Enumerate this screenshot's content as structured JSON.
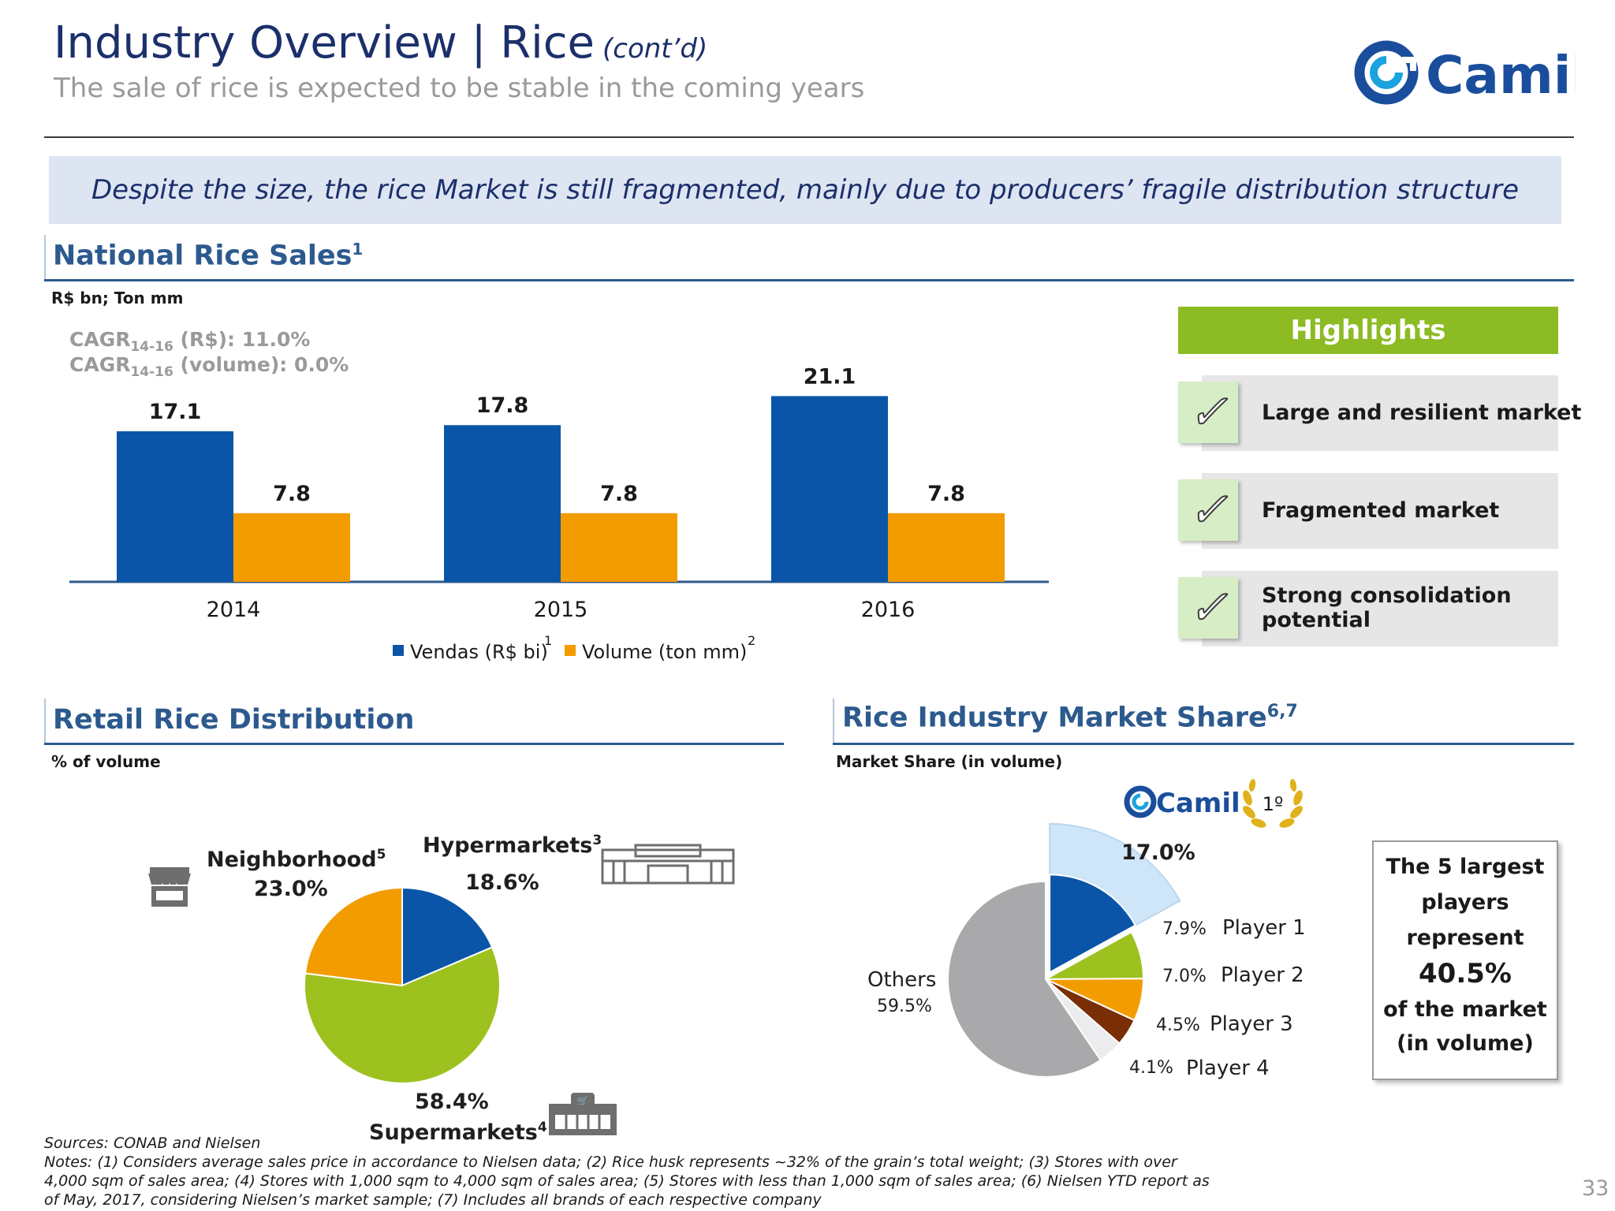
{
  "header": {
    "title": "Industry Overview | Rice",
    "title_suffix": "(cont’d)",
    "subtitle": "The sale of rice is expected to be stable in the coming years",
    "logo_text": "Camil"
  },
  "banner": "Despite the size, the rice Market is still fragmented, mainly due to producers’ fragile distribution structure",
  "sales_section": {
    "title": "National Rice Sales",
    "title_sup": "1",
    "unit": "R$ bn; Ton mm",
    "cagr_label": "CAGR",
    "cagr_sub": "14-16",
    "cagr_rs": " (R$): 11.0%",
    "cagr_volume": " (volume): 0.0%",
    "legend_1_sup": "1",
    "legend_2_sup": "2"
  },
  "highlights": {
    "title": "Highlights",
    "items": [
      "Large and resilient market",
      "Fragmented market",
      "Strong consolidation",
      "potential"
    ]
  },
  "distribution_section": {
    "title": "Retail Rice Distribution",
    "unit": "% of volume",
    "labels": {
      "hyper_name": "Hypermarkets",
      "hyper_sup": "3",
      "hyper_value": "18.6%",
      "neigh_name": "Neighborhood",
      "neigh_sup": "5",
      "neigh_value": "23.0%",
      "super_value": "58.4%",
      "super_name": "Supermarkets",
      "super_sup": "4"
    }
  },
  "share_section": {
    "title": "Rice Industry Market Share",
    "title_sup": "6,7",
    "unit": "Market Share (in volume)",
    "rank_badge": "1º",
    "labels": {
      "camil_value": "17.0%",
      "p1_value": "7.9%",
      "p1_name": "Player 1",
      "p2_value": "7.0%",
      "p2_name": "Player 2",
      "p3_value": "4.5%",
      "p3_name": "Player 3",
      "p4_value": "4.1%",
      "p4_name": "Player 4",
      "others_name": "Others",
      "others_value": "59.5%"
    }
  },
  "top5_box": {
    "line1": "The 5 largest",
    "line2": "players",
    "line3": "represent",
    "value": "40.5%",
    "line4": "of the market",
    "line5": "(in volume)"
  },
  "footer": {
    "sources": "Sources: CONAB and Nielsen",
    "notes": "Notes: (1) Considers average sales price in accordance to Nielsen data; (2) Rice husk represents ~32% of the grain’s total weight; (3) Stores with over 4,000 sqm of sales area; (4) Stores with 1,000 sqm to 4,000 sqm of sales area; (5) Stores with less than 1,000 sqm of sales area; (6) Nielsen YTD report as of May, 2017, considering Nielsen’s market sample; (7) Includes all brands of each respective company",
    "page_number": "33"
  },
  "icons": [
    "check-icon",
    "store-icon",
    "hypermarket-icon",
    "supermarket-icon",
    "laurel-icon"
  ],
  "colors": {
    "blue": "#0b55a8",
    "orange": "#f39c00",
    "green": "#9dc11e",
    "gray": "#a9a9ab",
    "dark_brown": "#7a2e05",
    "light_gray": "#ececef",
    "highlight_green": "#8dbb24"
  },
  "chart_data": [
    {
      "type": "bar",
      "categories": [
        "2014",
        "2015",
        "2016"
      ],
      "series": [
        {
          "name": "Vendas (R$ bi)",
          "values": [
            17.1,
            17.8,
            21.1
          ],
          "color": "#0b55a8"
        },
        {
          "name": "Volume (ton mm)",
          "values": [
            7.8,
            7.8,
            7.8
          ],
          "color": "#f39c00"
        }
      ],
      "ylim": [
        0,
        24
      ],
      "legend": "bottom",
      "grid": false
    },
    {
      "type": "pie",
      "labels": [
        "Hypermarkets",
        "Supermarkets",
        "Neighborhood"
      ],
      "values": [
        18.6,
        58.4,
        23.0
      ],
      "colors": [
        "#0b55a8",
        "#9dc11e",
        "#f39c00"
      ]
    },
    {
      "type": "pie",
      "labels": [
        "Camil",
        "Player 1",
        "Player 2",
        "Player 3",
        "Player 4",
        "Others"
      ],
      "values": [
        17.0,
        7.9,
        7.0,
        4.5,
        4.1,
        59.5
      ],
      "colors": [
        "#0b55a8",
        "#9dc11e",
        "#f39c00",
        "#7a2e05",
        "#ececef",
        "#a9a9ab"
      ],
      "exploded": "Camil"
    }
  ]
}
